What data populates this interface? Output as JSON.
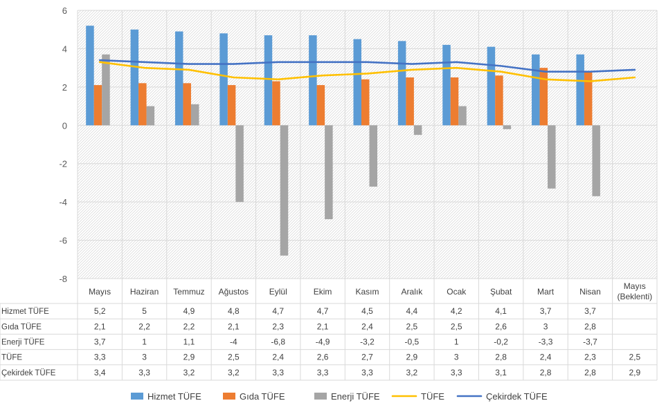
{
  "chart_data": {
    "type": "bar",
    "categories": [
      "Mayıs",
      "Haziran",
      "Temmuz",
      "Ağustos",
      "Eylül",
      "Ekim",
      "Kasım",
      "Aralık",
      "Ocak",
      "Şubat",
      "Mart",
      "Nisan",
      "Mayıs (Beklenti)"
    ],
    "category_lines": [
      [
        "Mayıs"
      ],
      [
        "Haziran"
      ],
      [
        "Temmuz"
      ],
      [
        "Ağustos"
      ],
      [
        "Eylül"
      ],
      [
        "Ekim"
      ],
      [
        "Kasım"
      ],
      [
        "Aralık"
      ],
      [
        "Ocak"
      ],
      [
        "Şubat"
      ],
      [
        "Mart"
      ],
      [
        "Nisan"
      ],
      [
        "Mayıs",
        "(Beklenti)"
      ]
    ],
    "ylim": [
      -8,
      6
    ],
    "yticks": [
      6,
      4,
      2,
      0,
      -2,
      -4,
      -6,
      -8
    ],
    "grid": true,
    "legend_position": "bottom",
    "series": [
      {
        "name": "Hizmet TÜFE",
        "kind": "bar",
        "color": "#5B9BD5",
        "values": [
          5.2,
          5,
          4.9,
          4.8,
          4.7,
          4.7,
          4.5,
          4.4,
          4.2,
          4.1,
          3.7,
          3.7,
          null
        ],
        "labels": [
          "5,2",
          "5",
          "4,9",
          "4,8",
          "4,7",
          "4,7",
          "4,5",
          "4,4",
          "4,2",
          "4,1",
          "3,7",
          "3,7",
          ""
        ]
      },
      {
        "name": "Gıda TÜFE",
        "kind": "bar",
        "color": "#ED7D31",
        "values": [
          2.1,
          2.2,
          2.2,
          2.1,
          2.3,
          2.1,
          2.4,
          2.5,
          2.5,
          2.6,
          3,
          2.8,
          null
        ],
        "labels": [
          "2,1",
          "2,2",
          "2,2",
          "2,1",
          "2,3",
          "2,1",
          "2,4",
          "2,5",
          "2,5",
          "2,6",
          "3",
          "2,8",
          ""
        ]
      },
      {
        "name": "Enerji TÜFE",
        "kind": "bar",
        "color": "#A5A5A5",
        "values": [
          3.7,
          1,
          1.1,
          -4,
          -6.8,
          -4.9,
          -3.2,
          -0.5,
          1,
          -0.2,
          -3.3,
          -3.7,
          null
        ],
        "labels": [
          "3,7",
          "1",
          "1,1",
          "-4",
          "-6,8",
          "-4,9",
          "-3,2",
          "-0,5",
          "1",
          "-0,2",
          "-3,3",
          "-3,7",
          ""
        ]
      },
      {
        "name": "TÜFE",
        "kind": "line",
        "color": "#FFC000",
        "values": [
          3.3,
          3,
          2.9,
          2.5,
          2.4,
          2.6,
          2.7,
          2.9,
          3,
          2.8,
          2.4,
          2.3,
          2.5
        ],
        "labels": [
          "3,3",
          "3",
          "2,9",
          "2,5",
          "2,4",
          "2,6",
          "2,7",
          "2,9",
          "3",
          "2,8",
          "2,4",
          "2,3",
          "2,5"
        ]
      },
      {
        "name": "Çekirdek TÜFE",
        "kind": "line",
        "color": "#4472C4",
        "values": [
          3.4,
          3.3,
          3.2,
          3.2,
          3.3,
          3.3,
          3.3,
          3.2,
          3.3,
          3.1,
          2.8,
          2.8,
          2.9
        ],
        "labels": [
          "3,4",
          "3,3",
          "3,2",
          "3,2",
          "3,3",
          "3,3",
          "3,3",
          "3,2",
          "3,3",
          "3,1",
          "2,8",
          "2,8",
          "2,9"
        ]
      }
    ]
  }
}
